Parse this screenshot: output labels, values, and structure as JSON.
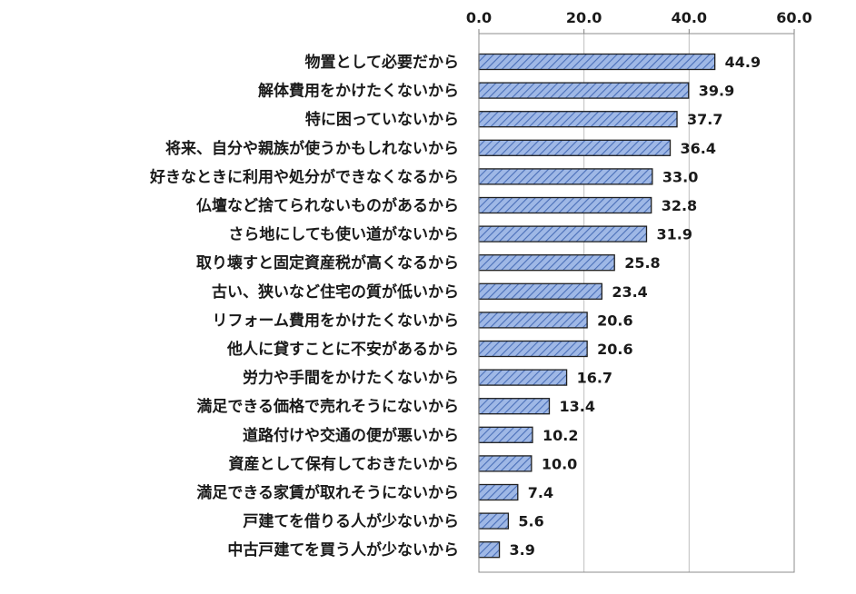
{
  "chart_data": {
    "type": "bar",
    "orientation": "horizontal",
    "categories": [
      "物置として必要だから",
      "解体費用をかけたくないから",
      "特に困っていないから",
      "将来、自分や親族が使うかもしれないから",
      "好きなときに利用や処分ができなくなるから",
      "仏壇など捨てられないものがあるから",
      "さら地にしても使い道がないから",
      "取り壊すと固定資産税が高くなるから",
      "古い、狭いなど住宅の質が低いから",
      "リフォーム費用をかけたくないから",
      "他人に貸すことに不安があるから",
      "労力や手間をかけたくないから",
      "満足できる価格で売れそうにないから",
      "道路付けや交通の便が悪いから",
      "資産として保有しておきたいから",
      "満足できる家賃が取れそうにないから",
      "戸建てを借りる人が少ないから",
      "中古戸建てを買う人が少ないから"
    ],
    "values": [
      44.9,
      39.9,
      37.7,
      36.4,
      33.0,
      32.8,
      31.9,
      25.8,
      23.4,
      20.6,
      20.6,
      16.7,
      13.4,
      10.2,
      10.0,
      7.4,
      5.6,
      3.9
    ],
    "value_labels": [
      "44.9",
      "39.9",
      "37.7",
      "36.4",
      "33.0",
      "32.8",
      "31.9",
      "25.8",
      "23.4",
      "20.6",
      "20.6",
      "16.7",
      "13.4",
      "10.2",
      "10.0",
      "7.4",
      "5.6",
      "3.9"
    ],
    "xlim": [
      0,
      60
    ],
    "ticks": [
      0,
      20,
      40,
      60
    ],
    "tick_labels": [
      "0.0",
      "20.0",
      "40.0",
      "60.0"
    ],
    "axis_position": "top",
    "grid": true,
    "title": "",
    "xlabel": "",
    "ylabel": "",
    "bar_fill": "#9fb8e6",
    "bar_hatch": "#4a6fb8",
    "bar_stroke": "#1f1f1f",
    "grid_color": "#bfbfbf"
  }
}
